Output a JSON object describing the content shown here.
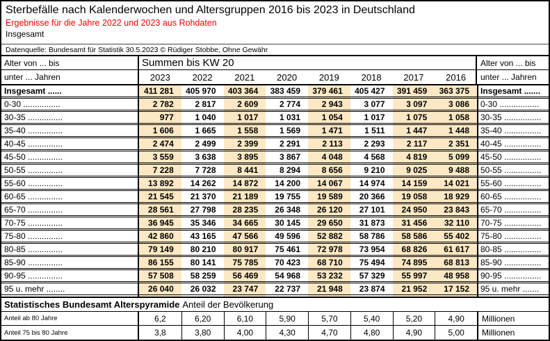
{
  "colors": {
    "accent_red": "#FF0000",
    "stripe": "#FCE8C4",
    "border": "#000000"
  },
  "header": {
    "title": "Sterbefälle nach Kalenderwochen und Altersgruppen 2016 bis 2023 in Deutschland",
    "subtitle": "Ergebnisse für die Jahre 2022 und 2023 aus Rohdaten",
    "scope_label": "Insgesamt",
    "source": "Datenquelle: Bundesamt für Statistik 30.5.2023 © Rüdiger Stobbe, Ohne Gewähr"
  },
  "table": {
    "left_header_line1": "Alter von ... bis",
    "left_header_line2": "unter ... Jahren",
    "right_header_line1": "Alter von ... bis",
    "right_header_line2": "unter ... Jahren",
    "span_header": "Summen bis KW 20",
    "years": [
      "2023",
      "2022",
      "2021",
      "2020",
      "2019",
      "2018",
      "2017",
      "2016"
    ],
    "striped_columns": [
      0,
      2,
      4,
      6,
      7
    ],
    "total_row": {
      "label_left": "Insgesamt ......",
      "label_right": "Insgesamt .......",
      "values": [
        "411 281",
        "405 970",
        "403 364",
        "383 459",
        "379 461",
        "405 427",
        "391 459",
        "363 375"
      ]
    },
    "rows": [
      {
        "label_left": "0-30 ................",
        "label_right": "0-30 .................",
        "values": [
          "2 782",
          "2 817",
          "2 609",
          "2 774",
          "2 943",
          "3 077",
          "3 097",
          "3 086"
        ]
      },
      {
        "label_left": "30-35 ...............",
        "label_right": "30-35 ................",
        "values": [
          "977",
          "1 040",
          "1 017",
          "1 031",
          "1 054",
          "1 017",
          "1 075",
          "1 058"
        ]
      },
      {
        "label_left": "35-40 ...............",
        "label_right": "35-40 ................",
        "values": [
          "1 606",
          "1 665",
          "1 558",
          "1 569",
          "1 471",
          "1 511",
          "1 447",
          "1 448"
        ]
      },
      {
        "label_left": "40-45 ...............",
        "label_right": "40-45 ................",
        "values": [
          "2 474",
          "2 499",
          "2 399",
          "2 291",
          "2 113",
          "2 293",
          "2 117",
          "2 351"
        ]
      },
      {
        "label_left": "45-50 ...............",
        "label_right": "45-50 ................",
        "values": [
          "3 559",
          "3 638",
          "3 895",
          "3 867",
          "4 048",
          "4 568",
          "4 819",
          "5 099"
        ]
      },
      {
        "label_left": "50-55 ...............",
        "label_right": "50-55 ................",
        "values": [
          "7 228",
          "7 728",
          "8 441",
          "8 294",
          "8 656",
          "9 210",
          "9 025",
          "9 488"
        ]
      },
      {
        "label_left": "55-60 ...............",
        "label_right": "55-60 ................",
        "values": [
          "13 892",
          "14 262",
          "14 872",
          "14 200",
          "14 067",
          "14 974",
          "14 159",
          "14 021"
        ]
      },
      {
        "label_left": "60-65 ...............",
        "label_right": "60-65 ................",
        "values": [
          "21 545",
          "21 370",
          "21 189",
          "19 755",
          "19 589",
          "20 366",
          "19 058",
          "18 929"
        ]
      },
      {
        "label_left": "65-70 ...............",
        "label_right": "65-70 ................",
        "values": [
          "28 561",
          "27 798",
          "28 235",
          "26 348",
          "26 120",
          "27 101",
          "24 950",
          "23 843"
        ]
      },
      {
        "label_left": "70-75 ...............",
        "label_right": "70-75 ................",
        "values": [
          "36 945",
          "35 346",
          "34 665",
          "30 145",
          "29 650",
          "31 873",
          "31 456",
          "32 110"
        ]
      },
      {
        "label_left": "75-80 ...............",
        "label_right": "75-80 ................",
        "values": [
          "42 860",
          "43 165",
          "47 566",
          "49 596",
          "52 882",
          "58 786",
          "58 586",
          "55 402"
        ]
      },
      {
        "label_left": "80-85 ...............",
        "label_right": "80-85 ................",
        "values": [
          "79 149",
          "80 210",
          "80 917",
          "75 461",
          "72 978",
          "73 954",
          "68 826",
          "61 617"
        ]
      },
      {
        "label_left": "85-90 ...............",
        "label_right": "85-90 ................",
        "values": [
          "86 155",
          "80 141",
          "75 785",
          "70 423",
          "68 710",
          "75 494",
          "74 895",
          "68 813"
        ]
      },
      {
        "label_left": "90-95 ...............",
        "label_right": "90-95 ................",
        "values": [
          "57 508",
          "58 259",
          "56 469",
          "54 968",
          "53 232",
          "57 329",
          "55 997",
          "48 958"
        ]
      },
      {
        "label_left": "95 u. mehr ........",
        "label_right": "95 u. mehr .......",
        "values": [
          "26 040",
          "26 032",
          "23 747",
          "22 737",
          "21 948",
          "23 874",
          "21 952",
          "17 152"
        ]
      }
    ]
  },
  "footer": {
    "title_bold": "Statistisches Bundesamt Alterspyramide",
    "title_rest": "Anteil der Bevölkerung",
    "rows": [
      {
        "label": "Anteil ab 80 Jahre",
        "values": [
          "6,2",
          "6,20",
          "6,10",
          "5,90",
          "5,70",
          "5,40",
          "5,20",
          "4,90"
        ],
        "unit": "Millionen"
      },
      {
        "label": "Anteil 75 bis 80 Jahre",
        "values": [
          "3,8",
          "3,80",
          "4,00",
          "4,30",
          "4,70",
          "4,80",
          "4,90",
          "5,00"
        ],
        "unit": "Millionen"
      }
    ]
  }
}
